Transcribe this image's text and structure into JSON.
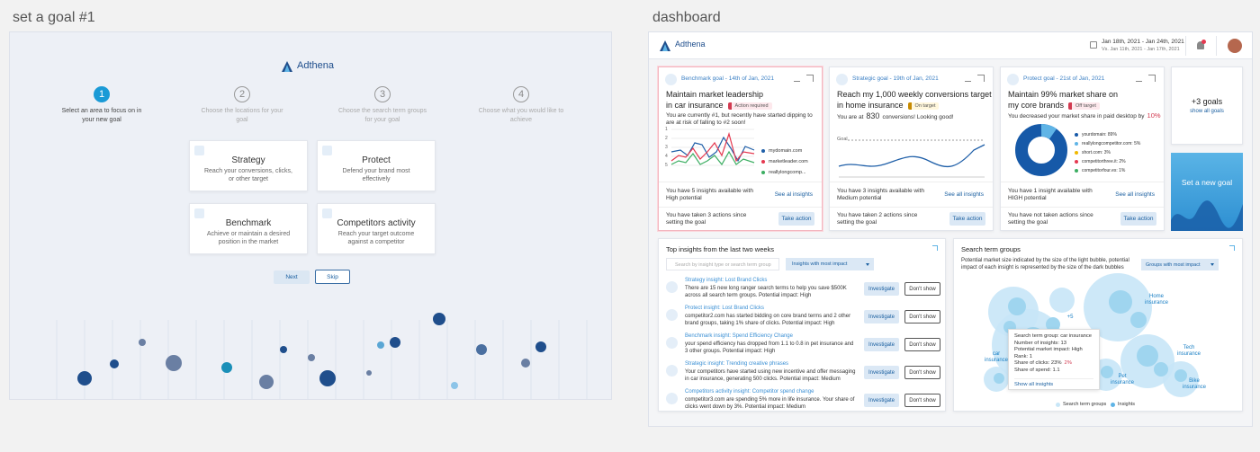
{
  "left": {
    "title": "set a goal #1",
    "brand": "Adthena",
    "steps": [
      {
        "num": "1",
        "label": "Select an area to focus on in your new goal"
      },
      {
        "num": "2",
        "label": "Choose the locations for your goal"
      },
      {
        "num": "3",
        "label": "Choose the search term groups for your goal"
      },
      {
        "num": "4",
        "label": "Choose what you would like to achieve"
      }
    ],
    "options": [
      {
        "title": "Strategy",
        "desc": "Reach your conversions, clicks, or other target"
      },
      {
        "title": "Protect",
        "desc": "Defend your brand most effectively"
      },
      {
        "title": "Benchmark",
        "desc": "Achieve or maintain a desired position in the market"
      },
      {
        "title": "Competitors activity",
        "desc": "Reach your target outcome against a competitor"
      }
    ],
    "buttons": [
      "Next",
      "Skip"
    ]
  },
  "right": {
    "title": "dashboard",
    "header": {
      "brand": "Adthena",
      "dates": "Jan 18th, 2021 - Jan 24th, 2021",
      "compare": "Vs. Jan 11th, 2021 - Jan 17th, 2021"
    },
    "cards": [
      {
        "tag": "Benchmark goal - 14th of Jan, 2021",
        "title_lines": [
          "Maintain market leadership",
          "in car insurance"
        ],
        "status": "Action required",
        "desc": "You are currently #1, but recently have started dipping to are at risk of falling to #2 soon!",
        "yticks": [
          "1",
          "2",
          "3",
          "4",
          "5"
        ],
        "legend": [
          "mydomain.com",
          "marketleader.com",
          "reallylongcomp..."
        ],
        "insights": "You have 5 insights available with High potential",
        "link": "See al insights",
        "actions": "You have taken 3 actions since setting the goal",
        "button": "Take action"
      },
      {
        "tag": "Strategic goal - 19th of Jan, 2021",
        "title_lines": [
          "Reach my 1,000 weekly conversions target",
          "in home insurance"
        ],
        "status": "On target",
        "desc": "You are at",
        "highlight": "830",
        "desc_end": "conversions! Looking good!",
        "goal_label": "Goal",
        "insights": "You have 3 insights available with Medium potential",
        "link": "See all insights",
        "actions": "You have taken 2 actions since setting the goal",
        "button": "Take action"
      },
      {
        "tag": "Protect goal - 21st of Jan, 2021",
        "title_lines": [
          "Maintain 99% market share on",
          "my core brands"
        ],
        "status": "Off target",
        "desc": "You decreased your market share in paid desktop by",
        "change": "10%",
        "legend": [
          "yourdomain: 89%",
          "reallylongcompetitor.com: 5%",
          "short.com: 3%",
          "competitorthree.it: 2%",
          "competitorfour.es: 1%"
        ],
        "insights": "You have 1 insight available with HIGH potential",
        "link": "See all insights",
        "actions": "You have not taken actions since setting the goal",
        "button": "Take action"
      }
    ],
    "more": {
      "title": "+3 goals",
      "link": "show all goals"
    },
    "new_goal": "Set a new goal",
    "insights": {
      "title": "Top insights from the last two weeks",
      "search": "Search by insight type or search term group",
      "dropdown": "Insights with most impact",
      "items": [
        {
          "title": "Strategy insight: Lost Brand Clicks",
          "text": "There are 15 new long ranger search terms to help you save $500K across all search term groups. Potential impact: High",
          "investigate": "Investigate",
          "dismiss": "Don't show"
        },
        {
          "title": "Protect insight: Lost Brand Clicks",
          "text": "competitor2.com has started bidding on core brand terms and 2 other brand groups, taking 1% share of clicks. Potential impact: High",
          "investigate": "Investigate",
          "dismiss": "Don't show"
        },
        {
          "title": "Benchmark insight: Spend Efficiency Change",
          "text": "your spend efficiency has dropped from 1.1 to 0.8 in pet insurance and 3 other groups. Potential impact: High",
          "investigate": "Investigate",
          "dismiss": "Don't show"
        },
        {
          "title": "Strategic insight: Trending creative phrases",
          "text": "Your competitors have started using new incentive and offer messaging in car insurance, generating 500 clicks. Potential impact: Medium",
          "investigate": "Investigate",
          "dismiss": "Don't show"
        },
        {
          "title": "Competitors activity insight: Competitor spend change",
          "text": "competitor3.com are spending 5% more in life insurance. Your share of clicks went down by 3%. Potential impact: Medium",
          "investigate": "Investigate",
          "dismiss": "Don't show"
        }
      ]
    },
    "groups": {
      "title": "Search term groups",
      "desc": "Potential market size indicated by the size of the light bubble, potential impact of each insight is represented by the size of the dark bubbles",
      "dropdown": "Groups with most impact",
      "bubble_labels": [
        "Home insurance",
        "+5",
        "car insurance",
        "Pet insurance",
        "Tech insurance",
        "Bike insurance"
      ],
      "tooltip": {
        "lines": [
          "Search term group: car insurance",
          "Number of insights: 13",
          "Potential market impact: High",
          "Rank: 1"
        ],
        "share_clicks": "Share of clicks: 23%",
        "share_change": "2%",
        "share_spend": "Share of spend: 1.1",
        "link": "Show all insights"
      },
      "legend": [
        "Search term groups",
        "Insights"
      ]
    }
  }
}
